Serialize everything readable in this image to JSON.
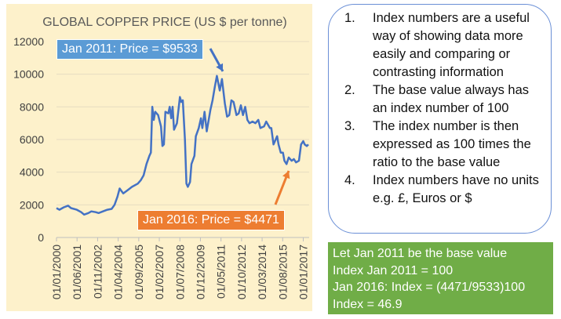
{
  "chart_data": {
    "type": "line",
    "title": "GLOBAL COPPER PRICE (US $ per tonne)",
    "xlabel": "",
    "ylabel": "",
    "ylim": [
      0,
      12000
    ],
    "y_ticks": [
      "0",
      "2000",
      "4000",
      "6000",
      "8000",
      "10000",
      "12000"
    ],
    "x_ticks": [
      "01/01/2000",
      "01/06/2001",
      "01/11/2002",
      "01/04/2004",
      "01/09/2005",
      "01/02/2007",
      "01/07/2008",
      "01/12/2009",
      "01/05/2011",
      "01/10/2012",
      "01/03/2014",
      "01/08/2015",
      "01/01/2017"
    ],
    "grid": "horizontal",
    "line_color": "#4472c4",
    "series": [
      {
        "x": [
          2000.0,
          2000.2,
          2000.5,
          2000.8,
          2001.0,
          2001.4,
          2001.7,
          2001.9,
          2002.2,
          2002.4,
          2002.7,
          2002.9,
          2003.2,
          2003.5,
          2003.8,
          2004.0,
          2004.2,
          2004.35,
          2004.6,
          2004.9,
          2005.2,
          2005.6,
          2005.8,
          2006.0,
          2006.2,
          2006.4,
          2006.5,
          2006.6,
          2006.7,
          2006.8,
          2007.0,
          2007.2,
          2007.3,
          2007.4,
          2007.5,
          2007.7,
          2007.8,
          2007.9,
          2008.0,
          2008.1,
          2008.3,
          2008.5,
          2008.6,
          2008.7,
          2008.85,
          2008.95,
          2009.05,
          2009.2,
          2009.3,
          2009.5,
          2009.6,
          2009.8,
          2009.95,
          2010.05,
          2010.2,
          2010.35,
          2010.6,
          2010.75,
          2010.9,
          2011.05,
          2011.25,
          2011.4,
          2011.6,
          2011.75,
          2011.9,
          2012.05,
          2012.2,
          2012.4,
          2012.55,
          2012.7,
          2012.85,
          2013.0,
          2013.15,
          2013.3,
          2013.5,
          2013.7,
          2013.9,
          2014.05,
          2014.3,
          2014.45,
          2014.7,
          2014.8,
          2014.95,
          2015.2,
          2015.3,
          2015.45,
          2015.6,
          2015.7,
          2015.85,
          2016.0,
          2016.2,
          2016.35,
          2016.5,
          2016.7,
          2016.85,
          2017.0,
          2017.1,
          2017.25,
          2017.35
        ],
        "values": [
          1800,
          1700,
          1850,
          1950,
          1800,
          1700,
          1550,
          1400,
          1500,
          1600,
          1550,
          1500,
          1600,
          1700,
          1750,
          2000,
          2500,
          3000,
          2700,
          2900,
          3100,
          3300,
          3500,
          3800,
          4500,
          5000,
          5200,
          8000,
          7200,
          7700,
          7500,
          6800,
          5600,
          5700,
          7700,
          7600,
          8000,
          7300,
          8000,
          6600,
          7000,
          8600,
          8300,
          8400,
          6000,
          3300,
          3100,
          3400,
          4500,
          5000,
          6200,
          6700,
          7300,
          6700,
          7700,
          6500,
          7800,
          8400,
          9200,
          9900,
          9000,
          9700,
          8200,
          7400,
          7500,
          8400,
          8300,
          7500,
          7600,
          8100,
          7500,
          8000,
          7200,
          7000,
          7100,
          7000,
          7200,
          6700,
          6800,
          7100,
          6700,
          6700,
          5700,
          6200,
          5700,
          5200,
          5200,
          4700,
          4500,
          4900,
          4700,
          4800,
          4600,
          4700,
          5700,
          5900,
          5700,
          5600,
          5700
        ]
      }
    ],
    "annotations": [
      {
        "text": "Jan 2011: Price = $9533",
        "color": "#5b9bd5"
      },
      {
        "text": "Jan 2016: Price = $4471",
        "color": "#ed7d31"
      }
    ]
  },
  "info": {
    "items": [
      {
        "num": "1.",
        "text": "Index numbers are a useful way of showing data more easily and comparing or contrasting information"
      },
      {
        "num": "2.",
        "text": "The base value always has an index number of 100"
      },
      {
        "num": "3.",
        "text": "The index number is then expressed as 100 times the ratio to the base value"
      },
      {
        "num": "4.",
        "text": "Index numbers have no units e.g. £, Euros or $"
      }
    ]
  },
  "calc": {
    "lines": [
      "Let Jan 2011 be the base value",
      "Index Jan 2011 = 100",
      "Jan 2016: Index = (4471/9533)100",
      "Index = 46.9"
    ],
    "color": "#70ad47"
  }
}
